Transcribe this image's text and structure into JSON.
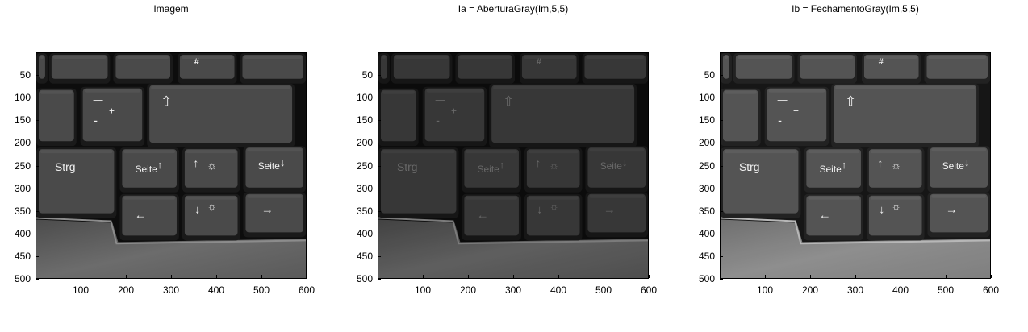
{
  "panels": [
    {
      "id": "original",
      "title": "Imagem",
      "variant": "original"
    },
    {
      "id": "opening",
      "title": "Ia = AberturaGray(Im,5,5)",
      "variant": "opening"
    },
    {
      "id": "closing",
      "title": "Ib = FechamentoGray(Im,5,5)",
      "variant": "closing"
    }
  ],
  "axes": {
    "y_ticks": [
      "50",
      "100",
      "150",
      "200",
      "250",
      "300",
      "350",
      "400",
      "450",
      "500"
    ],
    "x_ticks": [
      "100",
      "200",
      "300",
      "400",
      "500",
      "600"
    ],
    "y_range": [
      0,
      500
    ],
    "x_range": [
      0,
      600
    ]
  },
  "keyboard": {
    "keys": {
      "hash": "#",
      "minus": "—",
      "plus": "+",
      "minus2": "-",
      "shift": "⇧",
      "strg": "Strg",
      "seite_up": "Seite",
      "seite_down": "Seite",
      "arrow_up": "↑",
      "arrow_down": "↓",
      "arrow_left": "←",
      "arrow_right": "→",
      "sun": "☼"
    }
  },
  "colors": {
    "background": "#ffffff",
    "key_face": "#4a4a4a",
    "key_edge": "#1a1a1a",
    "frame": "#0d0d0d",
    "palm_rest": "#5e5e5e"
  }
}
